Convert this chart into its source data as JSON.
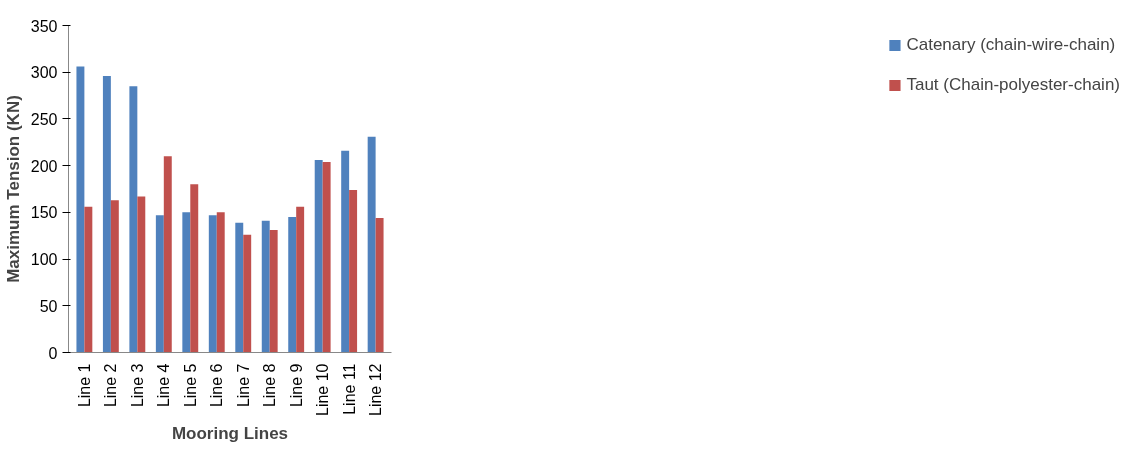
{
  "chart_data": {
    "type": "bar",
    "xlabel": "Mooring Lines",
    "ylabel": "Maximum Tension (KN)",
    "categories": [
      "Line 1",
      "Line 2",
      "Line 3",
      "Line 4",
      "Line 5",
      "Line 6",
      "Line 7",
      "Line 8",
      "Line 9",
      "Line 10",
      "Line 11",
      "Line 12"
    ],
    "series": [
      {
        "name": "Catenary (chain-wire-chain)",
        "color": "#4f81bd",
        "values": [
          306,
          296,
          285,
          147,
          150,
          147,
          139,
          141,
          145,
          206,
          216,
          231
        ]
      },
      {
        "name": "Taut (Chain-polyester-chain)",
        "color": "#c0504d",
        "values": [
          156,
          163,
          167,
          210,
          180,
          150,
          126,
          131,
          156,
          204,
          174,
          144
        ]
      }
    ],
    "ylim": [
      0,
      350
    ],
    "yticks": [
      0,
      50,
      100,
      150,
      200,
      250,
      300,
      350
    ],
    "grid": false,
    "legend": "right"
  }
}
